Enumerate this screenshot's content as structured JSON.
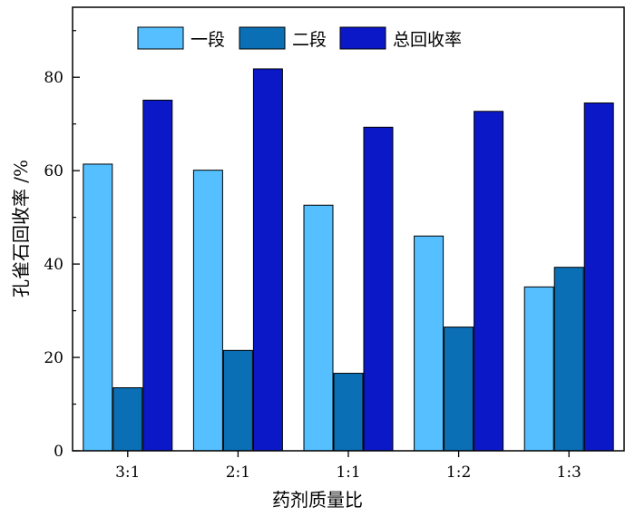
{
  "chart_data": {
    "type": "bar",
    "categories": [
      "3:1",
      "2:1",
      "1:1",
      "1:2",
      "1:3"
    ],
    "series": [
      {
        "name": "一段",
        "values": [
          61.4,
          60.1,
          52.6,
          46.0,
          35.1
        ],
        "color": "#55bfff"
      },
      {
        "name": "二段",
        "values": [
          13.5,
          21.5,
          16.6,
          26.5,
          39.3
        ],
        "color": "#0a6fb5"
      },
      {
        "name": "总回收率",
        "values": [
          75.1,
          81.8,
          69.3,
          72.7,
          74.5
        ],
        "color": "#0a18c8"
      }
    ],
    "xlabel": "药剂质量比",
    "ylabel": "孔雀石回收率 /%",
    "ylim": [
      0,
      95
    ],
    "yticks": [
      0,
      20,
      40,
      60,
      80
    ],
    "grid": false,
    "legend_position": "top-center"
  }
}
